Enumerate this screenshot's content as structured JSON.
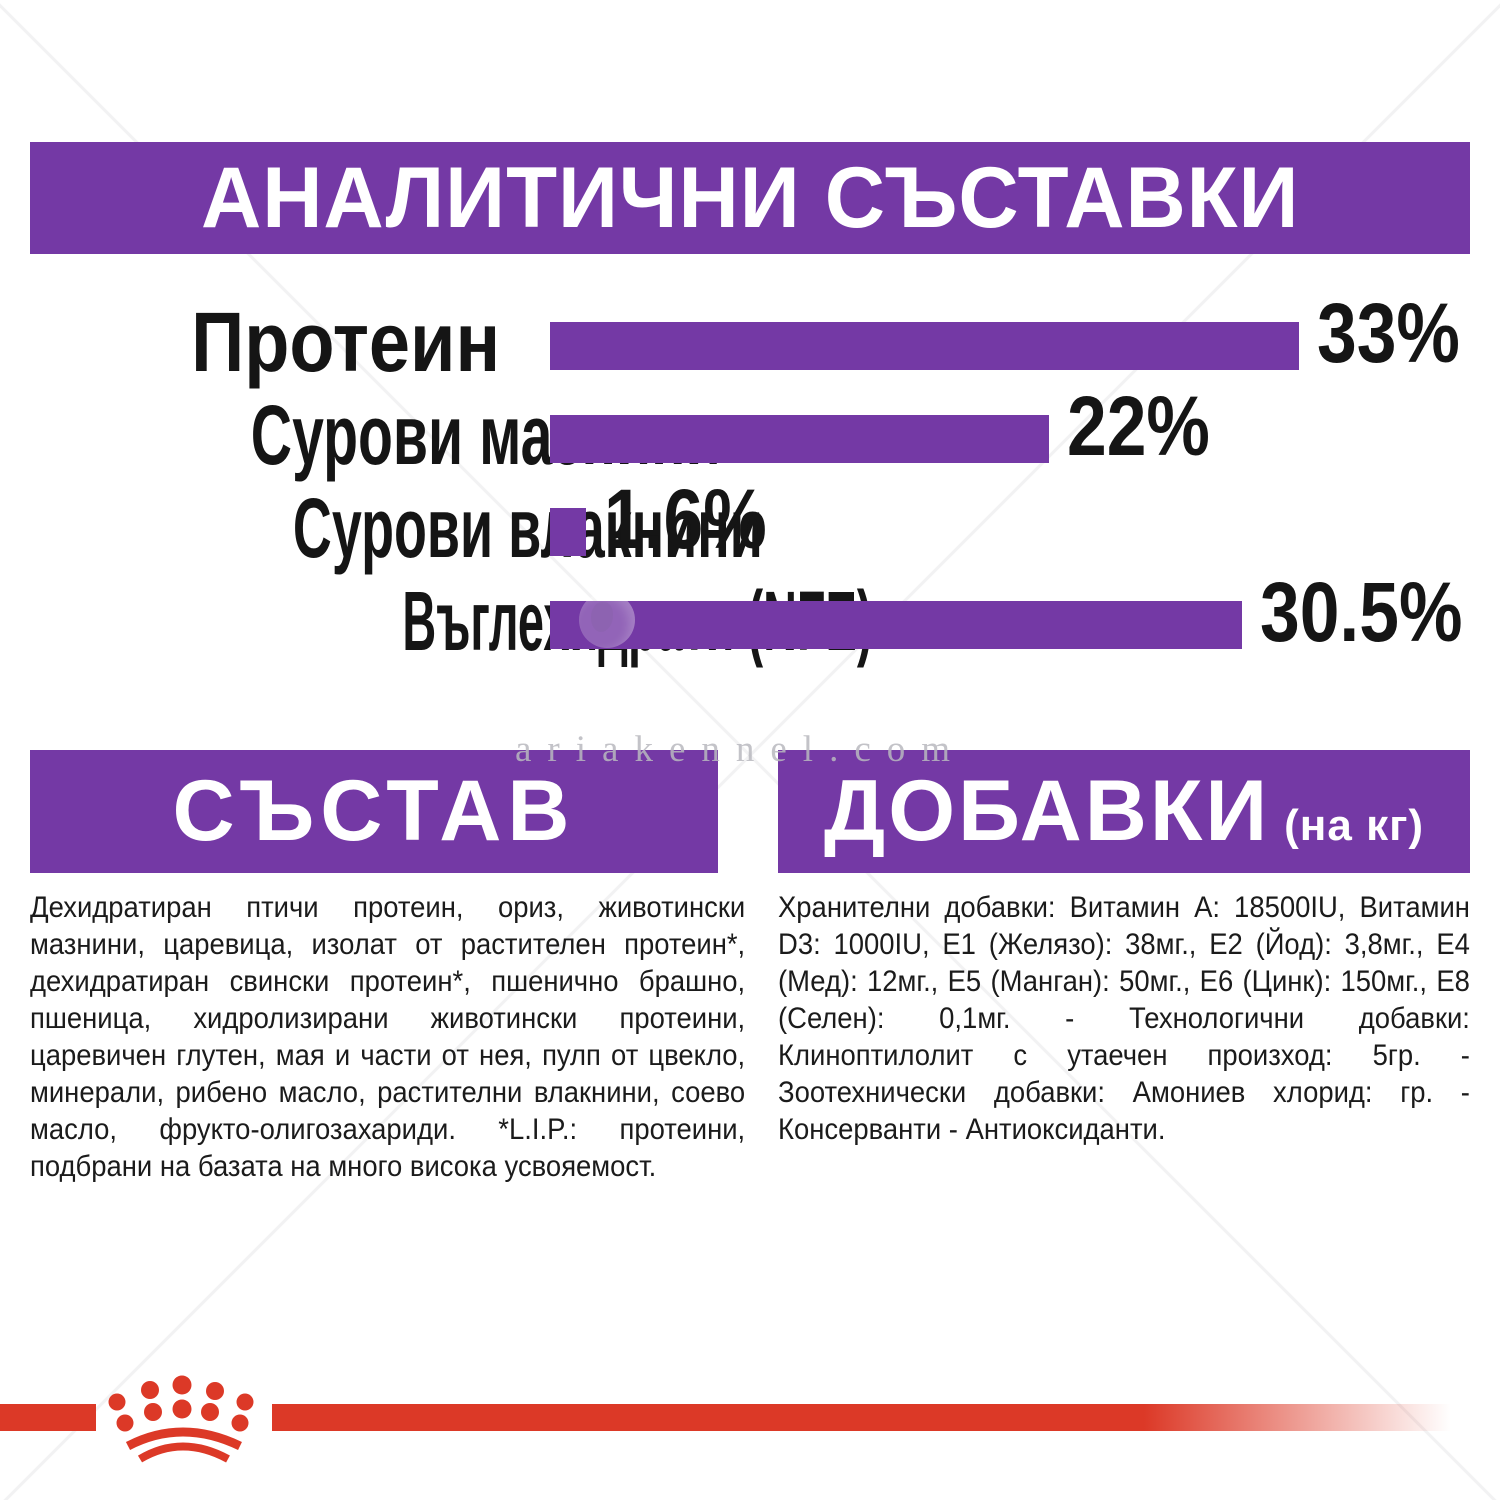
{
  "colors": {
    "purple": "#7439A5",
    "red": "#DC3927",
    "text": "#1B1B1B",
    "white": "#FFFFFF",
    "watermark_gray": "#BABABD"
  },
  "header": {
    "title": "АНАЛИТИЧНИ СЪСТАВКИ"
  },
  "chart_data": {
    "type": "bar",
    "orientation": "horizontal",
    "title": "АНАЛИТИЧНИ СЪСТАВКИ",
    "unit": "%",
    "categories": [
      "Протеин",
      "Сурови мазнини",
      "Сурови влакнини",
      "Въглехидрати (NFE)"
    ],
    "values": [
      33,
      22,
      1.6,
      30.5
    ],
    "value_labels": [
      "33%",
      "22%",
      "1.6%",
      "30.5%"
    ],
    "xlim": [
      0,
      34
    ],
    "grid": false,
    "legend": false,
    "bar_color": "#7439A5",
    "rows": [
      {
        "label": "Протеин",
        "value": 33,
        "display": "33%"
      },
      {
        "label": "Сурови мазнини",
        "value": 22,
        "display": "22%"
      },
      {
        "label": "Сурови влакнини",
        "value": 1.6,
        "display": "1.6%"
      },
      {
        "label": "Въглехидрати (NFE)",
        "value": 30.5,
        "display": "30.5%"
      }
    ]
  },
  "sections": {
    "composition": {
      "title": "СЪСТАВ",
      "body": "Дехидратиран птичи протеин, ориз, животински мазнини, царевица, изолат от растителен протеин*, дехидратиран свински протеин*, пшенично брашно, пшеница, хидролизирани животински протеини, царевичен глутен, мая и части от нея, пулп от цвекло, минерали, рибено масло, растителни влакнини, соево масло, фрукто-олигозахариди. *L.I.P.: протеини, подбрани на базата на много висока усвояемост."
    },
    "additives": {
      "title": "ДОБАВКИ",
      "title_suffix": "(на кг)",
      "body": "Хранителни добавки: Витамин А: 18500IU, Витамин D3: 1000IU, E1 (Желязо): 38мг., E2 (Йод): 3,8мг., E4 (Мед): 12мг., E5 (Манган): 50мг., E6 (Цинк): 150мг., E8 (Селен): 0,1мг. - Технологични добавки: Клиноптилолит с утаечен произход: 5гр. - Зоотехнически добавки: Амониев хлорид: гр. - Консерванти - Антиоксиданти."
    }
  },
  "watermark": {
    "text": "ariakennel.com"
  },
  "logo": {
    "name": "royal-canin-crown"
  }
}
